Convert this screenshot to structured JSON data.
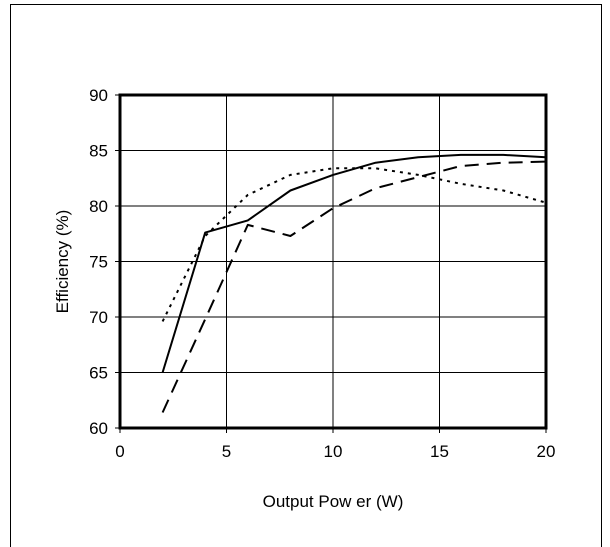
{
  "chart_data": {
    "type": "line",
    "title": "",
    "xlabel": "Output Pow er (W)",
    "ylabel": "Efficiency (%)",
    "xlim": [
      0,
      20
    ],
    "ylim": [
      60,
      90
    ],
    "xticks": [
      0,
      5,
      10,
      15,
      20
    ],
    "yticks": [
      60,
      65,
      70,
      75,
      80,
      85,
      90
    ],
    "grid": true,
    "legend": "none",
    "series": [
      {
        "style": "solid",
        "color": "#000000",
        "x": [
          2,
          4,
          6,
          8,
          10,
          12,
          14,
          16,
          18,
          20
        ],
        "y": [
          65.0,
          77.6,
          78.7,
          81.4,
          82.8,
          83.9,
          84.4,
          84.6,
          84.6,
          84.4
        ]
      },
      {
        "style": "dotted",
        "color": "#000000",
        "x": [
          2,
          4,
          6,
          8,
          10,
          12,
          14,
          16,
          18,
          20
        ],
        "y": [
          69.6,
          77.3,
          81.0,
          82.8,
          83.4,
          83.4,
          82.8,
          82.0,
          81.4,
          80.3
        ]
      },
      {
        "style": "dashed",
        "color": "#000000",
        "x": [
          2,
          4,
          6,
          8,
          10,
          12,
          14,
          16,
          18,
          20
        ],
        "y": [
          61.4,
          69.8,
          78.3,
          77.3,
          79.8,
          81.6,
          82.6,
          83.6,
          83.9,
          84.0
        ]
      }
    ]
  }
}
